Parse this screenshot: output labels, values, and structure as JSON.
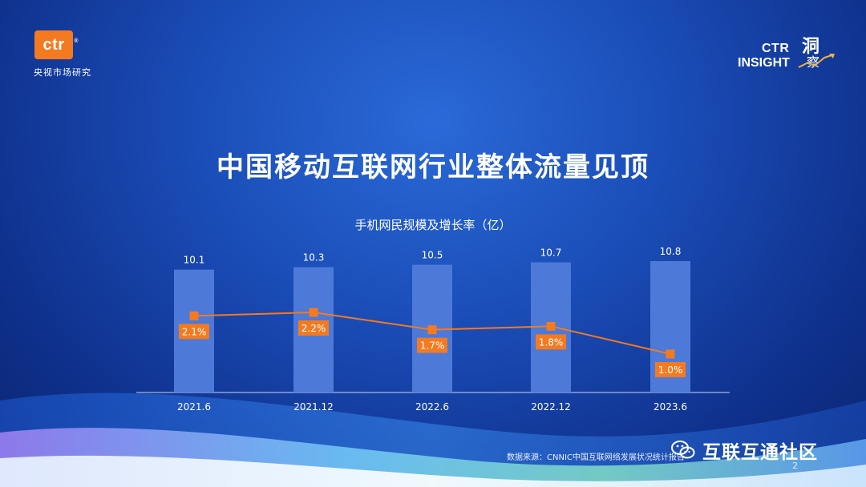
{
  "brand": {
    "logo_text": "ctr",
    "reg_mark": "®",
    "subtitle": "央视市场研究",
    "insight_line1": "CTR",
    "insight_line2": "INSIGHT",
    "insight_cn1": "洞",
    "insight_cn2": "察"
  },
  "slide": {
    "title": "中国移动互联网行业整体流量见顶",
    "source": "数据来源：CNNIC中国互联网络发展状况统计报告",
    "wechat_label": "互联互通社区",
    "page_number": "2"
  },
  "colors": {
    "bar": "#4d79d8",
    "line": "#f47a20",
    "axis": "#c9d6f5",
    "text": "#ffffff"
  },
  "chart_data": {
    "type": "bar",
    "title": "手机网民规模及增长率（亿）",
    "categories": [
      "2021.6",
      "2021.12",
      "2022.6",
      "2022.12",
      "2023.6"
    ],
    "series": [
      {
        "type": "bar",
        "values": [
          10.1,
          10.3,
          10.5,
          10.7,
          10.8
        ],
        "labels": [
          "10.1",
          "10.3",
          "10.5",
          "10.7",
          "10.8"
        ]
      },
      {
        "type": "line",
        "values": [
          2.1,
          2.2,
          1.7,
          1.8,
          1.0
        ],
        "labels": [
          "2.1%",
          "2.2%",
          "1.7%",
          "1.8%",
          "1.0%"
        ]
      }
    ],
    "grid": false,
    "legend": "none"
  }
}
